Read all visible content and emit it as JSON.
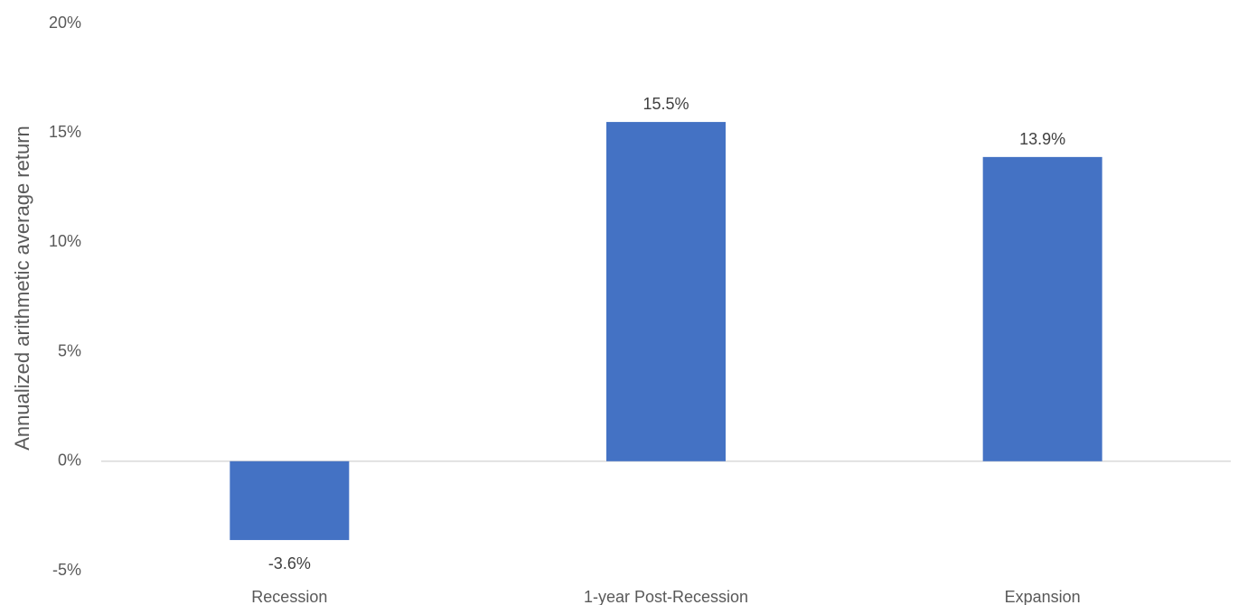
{
  "chart_data": {
    "type": "bar",
    "title": "",
    "xlabel": "",
    "ylabel": "Annualized arithmetic average return",
    "categories": [
      "Recession",
      "1-year Post-Recession",
      "Expansion"
    ],
    "values": [
      -3.6,
      15.5,
      13.9
    ],
    "data_labels": [
      "-3.6%",
      "15.5%",
      "13.9%"
    ],
    "ylim": [
      -5,
      20
    ],
    "yticks": [
      -5,
      0,
      5,
      10,
      15,
      20
    ],
    "ytick_labels": [
      "-5%",
      "0%",
      "5%",
      "10%",
      "15%",
      "20%"
    ],
    "bar_color": "#4472C4",
    "grid": false,
    "legend": "none"
  }
}
